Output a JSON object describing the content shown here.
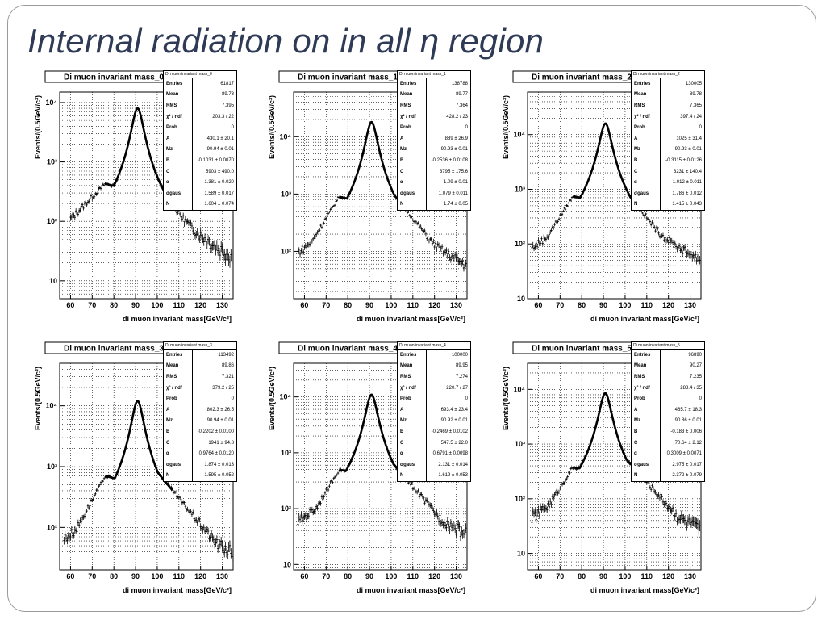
{
  "slide": {
    "title": "Internal radiation on in all η region"
  },
  "style": {
    "title_color": "#2e3a56",
    "axis_color": "#000000",
    "grid_color": "#000000",
    "frame_color": "#9a9a9a"
  },
  "chart_data": [
    {
      "type": "scatter",
      "title": "Di muon invariant mass_0",
      "xlabel": "di muon invariant mass[GeV/c²]",
      "ylabel": "Events/(0.5GeV/c²)",
      "yscale": "log",
      "xlim": [
        55,
        135
      ],
      "ylim": [
        5,
        15000
      ],
      "xticks": [
        60,
        70,
        80,
        90,
        100,
        110,
        120,
        130
      ],
      "yticks": [
        {
          "v": 10,
          "label": "10"
        },
        {
          "v": 100,
          "label": "10²"
        },
        {
          "v": 1000,
          "label": "10³"
        },
        {
          "v": 10000,
          "label": "10⁴"
        }
      ],
      "grid": true,
      "peak": {
        "x": 90.94,
        "y": 8000
      },
      "baseline": {
        "start": 60,
        "y_start": 110,
        "y_at_fit": 430
      },
      "tail_end": 8,
      "stats": {
        "header": "Di muon invariant mass_0",
        "rows": [
          {
            "k": "Entries",
            "v": "61817"
          },
          {
            "k": "Mean",
            "v": "89.73"
          },
          {
            "k": "RMS",
            "v": "7.395"
          },
          {
            "k": "χ² / ndf",
            "v": "203.3 / 22"
          },
          {
            "k": "Prob",
            "v": "0"
          },
          {
            "k": "A",
            "v": "430.1 ± 20.1"
          },
          {
            "k": "Mz",
            "v": "90.94 ± 0.01"
          },
          {
            "k": "B",
            "v": "-0.1031 ± 0.0070"
          },
          {
            "k": "C",
            "v": "5903 ± 490.0"
          },
          {
            "k": "α",
            "v": "1.381 ± 0.020"
          },
          {
            "k": "σgaus",
            "v": "1.589 ± 0.017"
          },
          {
            "k": "N",
            "v": "1.604 ± 0.074"
          }
        ]
      }
    },
    {
      "type": "scatter",
      "title": "Di muon invariant mass_1",
      "xlabel": "di muon invariant mass[GeV/c²]",
      "ylabel": "Events/(0.5GeV/c²)",
      "yscale": "log",
      "xlim": [
        55,
        135
      ],
      "ylim": [
        15,
        60000
      ],
      "xticks": [
        60,
        70,
        80,
        90,
        100,
        110,
        120,
        130
      ],
      "yticks": [
        {
          "v": 100,
          "label": "10²"
        },
        {
          "v": 1000,
          "label": "10³"
        },
        {
          "v": 10000,
          "label": "10⁴"
        }
      ],
      "grid": true,
      "peak": {
        "x": 90.93,
        "y": 18000
      },
      "baseline": {
        "start": 57,
        "y_start": 60,
        "y_at_fit": 900
      },
      "tail_end": 28,
      "stats": {
        "header": "Di muon invariant mass_1",
        "rows": [
          {
            "k": "Entries",
            "v": "138788"
          },
          {
            "k": "Mean",
            "v": "89.77"
          },
          {
            "k": "RMS",
            "v": "7.364"
          },
          {
            "k": "χ² / ndf",
            "v": "428.2 / 23"
          },
          {
            "k": "Prob",
            "v": "0"
          },
          {
            "k": "A",
            "v": "889 ± 26.9"
          },
          {
            "k": "Mz",
            "v": "90.93 ± 0.01"
          },
          {
            "k": "B",
            "v": "-0.2536 ± 0.0108"
          },
          {
            "k": "C",
            "v": "3795 ± 175.6"
          },
          {
            "k": "α",
            "v": "1.09 ± 0.01"
          },
          {
            "k": "σgaus",
            "v": "1.079 ± 0.011"
          },
          {
            "k": "N",
            "v": "1.74 ± 0.05"
          }
        ]
      }
    },
    {
      "type": "scatter",
      "title": "Di muon invariant mass_2",
      "xlabel": "di muon invariant mass[GeV/c²]",
      "ylabel": "Events/(0.5GeV/c²)",
      "yscale": "log",
      "xlim": [
        55,
        135
      ],
      "ylim": [
        10,
        60000
      ],
      "xticks": [
        60,
        70,
        80,
        90,
        100,
        110,
        120,
        130
      ],
      "yticks": [
        {
          "v": 10,
          "label": "10"
        },
        {
          "v": 100,
          "label": "10²"
        },
        {
          "v": 1000,
          "label": "10³"
        },
        {
          "v": 10000,
          "label": "10⁴"
        }
      ],
      "grid": true,
      "peak": {
        "x": 90.93,
        "y": 16000
      },
      "baseline": {
        "start": 57,
        "y_start": 50,
        "y_at_fit": 750
      },
      "tail_end": 20,
      "stats": {
        "header": "Di muon invariant mass_2",
        "rows": [
          {
            "k": "Entries",
            "v": "130005"
          },
          {
            "k": "Mean",
            "v": "89.78"
          },
          {
            "k": "RMS",
            "v": "7.365"
          },
          {
            "k": "χ² / ndf",
            "v": "397.4 / 24"
          },
          {
            "k": "Prob",
            "v": "0"
          },
          {
            "k": "A",
            "v": "1025 ± 31.4"
          },
          {
            "k": "Mz",
            "v": "90.93 ± 0.01"
          },
          {
            "k": "B",
            "v": "-0.3115 ± 0.0126"
          },
          {
            "k": "C",
            "v": "3231 ± 140.4"
          },
          {
            "k": "α",
            "v": "1.012 ± 0.011"
          },
          {
            "k": "σgaus",
            "v": "1.786 ± 0.012"
          },
          {
            "k": "N",
            "v": "1.415 ± 0.043"
          }
        ]
      }
    },
    {
      "type": "scatter",
      "title": "Di muon invariant mass_3",
      "xlabel": "di muon invariant mass[GeV/c²]",
      "ylabel": "Events/(0.5GeV/c²)",
      "yscale": "log",
      "xlim": [
        55,
        135
      ],
      "ylim": [
        20,
        50000
      ],
      "xticks": [
        60,
        70,
        80,
        90,
        100,
        110,
        120,
        130
      ],
      "yticks": [
        {
          "v": 100,
          "label": "10²"
        },
        {
          "v": 1000,
          "label": "10³"
        },
        {
          "v": 10000,
          "label": "10⁴"
        }
      ],
      "grid": true,
      "peak": {
        "x": 90.94,
        "y": 12000
      },
      "baseline": {
        "start": 57,
        "y_start": 40,
        "y_at_fit": 700
      },
      "tail_end": 28,
      "stats": {
        "header": "Di muon invariant mass_3",
        "rows": [
          {
            "k": "Entries",
            "v": "113492"
          },
          {
            "k": "Mean",
            "v": "89.86"
          },
          {
            "k": "RMS",
            "v": "7.321"
          },
          {
            "k": "χ² / ndf",
            "v": "379.2 / 25"
          },
          {
            "k": "Prob",
            "v": "0"
          },
          {
            "k": "A",
            "v": "802.3 ± 26.5"
          },
          {
            "k": "Mz",
            "v": "90.94 ± 0.01"
          },
          {
            "k": "B",
            "v": "-0.2202 ± 0.0100"
          },
          {
            "k": "C",
            "v": "1941 ± 94.8"
          },
          {
            "k": "α",
            "v": "0.9764 ± 0.0120"
          },
          {
            "k": "σgaus",
            "v": "1.874 ± 0.013"
          },
          {
            "k": "N",
            "v": "1.595 ± 0.052"
          }
        ]
      }
    },
    {
      "type": "scatter",
      "title": "Di muon invariant mass_4",
      "xlabel": "di muon invariant mass[GeV/c²]",
      "ylabel": "Events/(0.5GeV/c²)",
      "yscale": "log",
      "xlim": [
        55,
        135
      ],
      "ylim": [
        8,
        40000
      ],
      "xticks": [
        60,
        70,
        80,
        90,
        100,
        110,
        120,
        130
      ],
      "yticks": [
        {
          "v": 10,
          "label": "10"
        },
        {
          "v": 100,
          "label": "10²"
        },
        {
          "v": 1000,
          "label": "10³"
        },
        {
          "v": 10000,
          "label": "10⁴"
        }
      ],
      "grid": true,
      "peak": {
        "x": 90.92,
        "y": 11000
      },
      "baseline": {
        "start": 57,
        "y_start": 30,
        "y_at_fit": 500
      },
      "tail_end": 20,
      "stats": {
        "header": "Di muon invariant mass_4",
        "rows": [
          {
            "k": "Entries",
            "v": "100000"
          },
          {
            "k": "Mean",
            "v": "89.95"
          },
          {
            "k": "RMS",
            "v": "7.274"
          },
          {
            "k": "χ² / ndf",
            "v": "220.7 / 27"
          },
          {
            "k": "Prob",
            "v": "0"
          },
          {
            "k": "A",
            "v": "693.4 ± 23.4"
          },
          {
            "k": "Mz",
            "v": "90.92 ± 0.01"
          },
          {
            "k": "B",
            "v": "-0.2469 ± 0.0102"
          },
          {
            "k": "C",
            "v": "547.5 ± 22.0"
          },
          {
            "k": "α",
            "v": "0.6791 ± 0.0098"
          },
          {
            "k": "σgaus",
            "v": "2.131 ± 0.014"
          },
          {
            "k": "N",
            "v": "1.619 ± 0.053"
          }
        ]
      }
    },
    {
      "type": "scatter",
      "title": "Di muon invariant mass_5",
      "xlabel": "di muon invariant mass[GeV/c²]",
      "ylabel": "Events/(0.5GeV/c²)",
      "yscale": "log",
      "xlim": [
        55,
        135
      ],
      "ylim": [
        5,
        30000
      ],
      "xticks": [
        60,
        70,
        80,
        90,
        100,
        110,
        120,
        130
      ],
      "yticks": [
        {
          "v": 10,
          "label": "10"
        },
        {
          "v": 100,
          "label": "10²"
        },
        {
          "v": 1000,
          "label": "10³"
        },
        {
          "v": 10000,
          "label": "10⁴"
        }
      ],
      "grid": true,
      "peak": {
        "x": 90.86,
        "y": 8500
      },
      "baseline": {
        "start": 57,
        "y_start": 25,
        "y_at_fit": 380
      },
      "tail_end": 18,
      "stats": {
        "header": "Di muon invariant mass_5",
        "rows": [
          {
            "k": "Entries",
            "v": "96890"
          },
          {
            "k": "Mean",
            "v": "90.27"
          },
          {
            "k": "RMS",
            "v": "7.235"
          },
          {
            "k": "χ² / ndf",
            "v": "288.4 / 35"
          },
          {
            "k": "Prob",
            "v": "0"
          },
          {
            "k": "A",
            "v": "465.7 ± 18.3"
          },
          {
            "k": "Mz",
            "v": "90.86 ± 0.01"
          },
          {
            "k": "B",
            "v": "-0.183 ± 0.006"
          },
          {
            "k": "C",
            "v": "70.64 ± 2.12"
          },
          {
            "k": "α",
            "v": "0.3009 ± 0.0071"
          },
          {
            "k": "σgaus",
            "v": "2.975 ± 0.017"
          },
          {
            "k": "N",
            "v": "2.372 ± 0.079"
          }
        ]
      }
    }
  ]
}
